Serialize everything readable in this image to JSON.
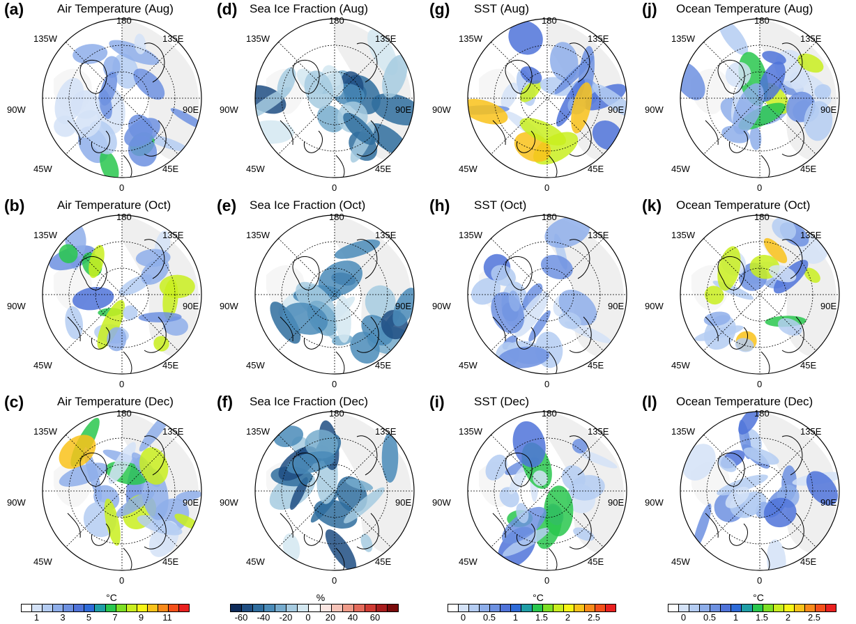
{
  "panels": [
    {
      "id": "a",
      "label": "(a)",
      "title": "Air Temperature (Aug)",
      "scheme": "air",
      "col": 0,
      "row": 0
    },
    {
      "id": "b",
      "label": "(b)",
      "title": "Air Temperature (Oct)",
      "scheme": "air",
      "col": 0,
      "row": 1
    },
    {
      "id": "c",
      "label": "(c)",
      "title": "Air Temperature (Dec)",
      "scheme": "air",
      "col": 0,
      "row": 2
    },
    {
      "id": "d",
      "label": "(d)",
      "title": "Sea Ice Fraction (Aug)",
      "scheme": "ice",
      "col": 1,
      "row": 0
    },
    {
      "id": "e",
      "label": "(e)",
      "title": "Sea Ice Fraction (Oct)",
      "scheme": "ice",
      "col": 1,
      "row": 1
    },
    {
      "id": "f",
      "label": "(f)",
      "title": "Sea Ice Fraction (Dec)",
      "scheme": "ice",
      "col": 1,
      "row": 2
    },
    {
      "id": "g",
      "label": "(g)",
      "title": "SST (Aug)",
      "scheme": "sst",
      "col": 2,
      "row": 0
    },
    {
      "id": "h",
      "label": "(h)",
      "title": "SST (Oct)",
      "scheme": "sst",
      "col": 2,
      "row": 1
    },
    {
      "id": "i",
      "label": "(i)",
      "title": "SST (Dec)",
      "scheme": "sst",
      "col": 2,
      "row": 2
    },
    {
      "id": "j",
      "label": "(j)",
      "title": "Ocean Temperature (Aug)",
      "scheme": "sst",
      "col": 3,
      "row": 0
    },
    {
      "id": "k",
      "label": "(k)",
      "title": "Ocean Temperature (Oct)",
      "scheme": "sst",
      "col": 3,
      "row": 1
    },
    {
      "id": "l",
      "label": "(l)",
      "title": "Ocean Temperature (Dec)",
      "scheme": "sst",
      "col": 3,
      "row": 2
    }
  ],
  "longitude_labels": {
    "top": "180",
    "top_left": "135W",
    "top_right": "135E",
    "left": "90W",
    "right": "90E",
    "bottom_left": "45W",
    "bottom_right": "45E",
    "bottom": "0"
  },
  "colorbars": [
    {
      "unit": "°C",
      "ticks": [
        "1",
        "3",
        "5",
        "7",
        "9",
        "11"
      ],
      "colors": [
        "#ffffff",
        "#d4e2f7",
        "#b4ccf2",
        "#8eaeea",
        "#6d91e1",
        "#4f73d9",
        "#2e6bd8",
        "#1f9ea6",
        "#29c74e",
        "#7ddf24",
        "#c9ee1f",
        "#f7f416",
        "#f9c21a",
        "#f98a1a",
        "#f4501a",
        "#e9201f"
      ]
    },
    {
      "unit": "%",
      "ticks": [
        "-60",
        "-40",
        "-20",
        "0",
        "20",
        "40",
        "60"
      ],
      "colors": [
        "#0e2b59",
        "#1f4e82",
        "#2f6d9e",
        "#4a8bb8",
        "#76abcd",
        "#a6cbe0",
        "#d4e8f1",
        "#ffffff",
        "#fbe6e2",
        "#f6c3b8",
        "#ef9a88",
        "#e46b5b",
        "#cf3b33",
        "#a81d1d",
        "#7a0b0b"
      ]
    },
    {
      "unit": "°C",
      "ticks": [
        "0",
        "0.5",
        "1",
        "1.5",
        "2",
        "2.5"
      ],
      "colors": [
        "#ffffff",
        "#d4e2f7",
        "#b4ccf2",
        "#8eaeea",
        "#6d91e1",
        "#4f73d9",
        "#2e6bd8",
        "#1f9ea6",
        "#29c74e",
        "#7ddf24",
        "#c9ee1f",
        "#f7f416",
        "#f9c21a",
        "#f98a1a",
        "#f4501a",
        "#e9201f"
      ]
    },
    {
      "unit": "°C",
      "ticks": [
        "0",
        "0.5",
        "1",
        "1.5",
        "2",
        "2.5"
      ],
      "colors": [
        "#ffffff",
        "#d4e2f7",
        "#b4ccf2",
        "#8eaeea",
        "#6d91e1",
        "#4f73d9",
        "#2e6bd8",
        "#1f9ea6",
        "#29c74e",
        "#7ddf24",
        "#c9ee1f",
        "#f7f416",
        "#f9c21a",
        "#f98a1a",
        "#f4501a",
        "#e9201f"
      ]
    }
  ]
}
